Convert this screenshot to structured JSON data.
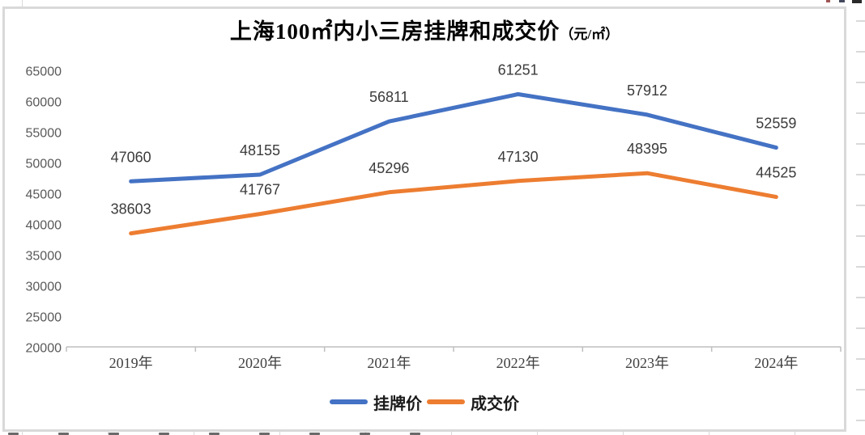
{
  "chart_data": {
    "type": "line",
    "title": "上海100㎡内小三房挂牌和成交价",
    "title_unit": "（元/㎡）",
    "categories": [
      "2019年",
      "2020年",
      "2021年",
      "2022年",
      "2023年",
      "2024年"
    ],
    "series": [
      {
        "name": "挂牌价",
        "color": "#4472C4",
        "values": [
          47060,
          48155,
          56811,
          61251,
          57912,
          52559
        ]
      },
      {
        "name": "成交价",
        "color": "#ED7D31",
        "values": [
          38603,
          41767,
          45296,
          47130,
          48395,
          44525
        ]
      }
    ],
    "ylim": [
      20000,
      65000
    ],
    "ytick_step": 5000,
    "ytick_labels": [
      "20000",
      "25000",
      "30000",
      "35000",
      "40000",
      "45000",
      "50000",
      "55000",
      "60000",
      "65000"
    ],
    "grid": false,
    "legend_position": "bottom",
    "data_labels": "above",
    "xlabel": "",
    "ylabel": ""
  },
  "colors": {
    "listing_line": "#4472C4",
    "deal_line": "#ED7D31",
    "axis_line": "#BFBFBF",
    "y_axis_label": "#595959",
    "x_axis_label": "#404040",
    "data_label": "#3b3b3b",
    "frame_border": "#D9D9D9",
    "title": "#000000"
  }
}
